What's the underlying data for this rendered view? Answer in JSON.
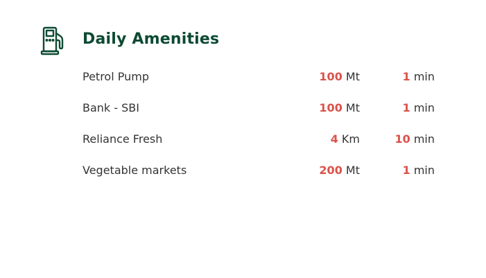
{
  "section": {
    "title": "Daily Amenities",
    "icon": "fuel-pump-icon",
    "accent_color": "#0d4a33",
    "number_color": "#d9534a"
  },
  "amenities": [
    {
      "name": "Petrol Pump",
      "distance": "100",
      "distance_unit": "Mt",
      "time": "1",
      "time_unit": "min"
    },
    {
      "name": "Bank - SBI",
      "distance": "100",
      "distance_unit": "Mt",
      "time": "1",
      "time_unit": "min"
    },
    {
      "name": "Reliance Fresh",
      "distance": "4",
      "distance_unit": "Km",
      "time": "10",
      "time_unit": "min"
    },
    {
      "name": "Vegetable markets",
      "distance": "200",
      "distance_unit": "Mt",
      "time": "1",
      "time_unit": "min"
    }
  ]
}
